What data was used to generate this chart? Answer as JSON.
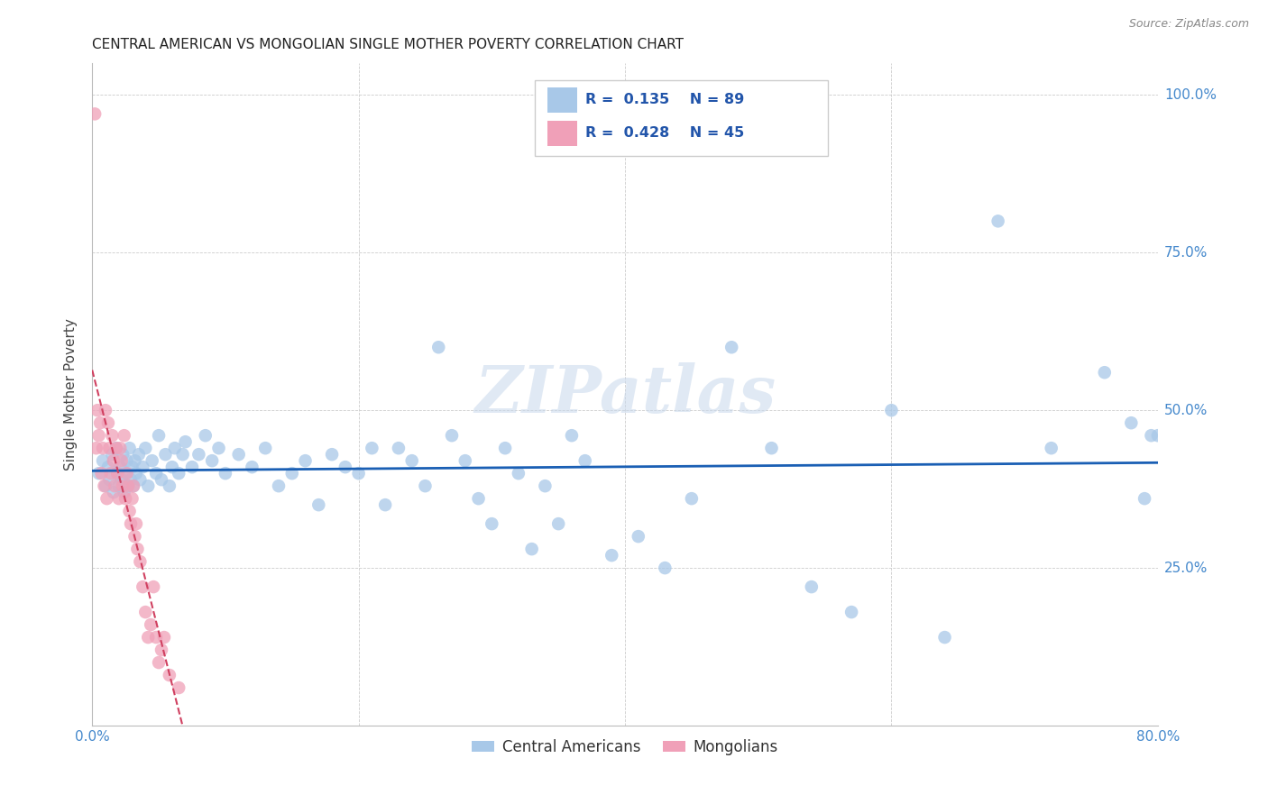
{
  "title": "CENTRAL AMERICAN VS MONGOLIAN SINGLE MOTHER POVERTY CORRELATION CHART",
  "source": "Source: ZipAtlas.com",
  "ylabel": "Single Mother Poverty",
  "xlim": [
    0.0,
    0.8
  ],
  "ylim": [
    0.0,
    1.05
  ],
  "xticks": [
    0.0,
    0.2,
    0.4,
    0.6,
    0.8
  ],
  "xticklabels": [
    "0.0%",
    "",
    "",
    "",
    "80.0%"
  ],
  "yticks": [
    0.25,
    0.5,
    0.75,
    1.0
  ],
  "yticklabels": [
    "25.0%",
    "50.0%",
    "75.0%",
    "100.0%"
  ],
  "blue_color": "#a8c8e8",
  "pink_color": "#f0a0b8",
  "trendline_blue": "#1a5fb4",
  "trendline_pink": "#d04060",
  "legend_label1": "Central Americans",
  "legend_label2": "Mongolians",
  "watermark": "ZIPatlas",
  "blue_x": [
    0.005,
    0.008,
    0.01,
    0.012,
    0.013,
    0.015,
    0.016,
    0.018,
    0.019,
    0.02,
    0.021,
    0.022,
    0.023,
    0.024,
    0.025,
    0.026,
    0.027,
    0.028,
    0.029,
    0.03,
    0.031,
    0.032,
    0.033,
    0.035,
    0.036,
    0.038,
    0.04,
    0.042,
    0.045,
    0.048,
    0.05,
    0.052,
    0.055,
    0.058,
    0.06,
    0.062,
    0.065,
    0.068,
    0.07,
    0.075,
    0.08,
    0.085,
    0.09,
    0.095,
    0.1,
    0.11,
    0.12,
    0.13,
    0.14,
    0.15,
    0.16,
    0.17,
    0.18,
    0.19,
    0.2,
    0.21,
    0.22,
    0.23,
    0.24,
    0.25,
    0.26,
    0.27,
    0.28,
    0.29,
    0.3,
    0.31,
    0.32,
    0.33,
    0.34,
    0.35,
    0.36,
    0.37,
    0.39,
    0.41,
    0.43,
    0.45,
    0.48,
    0.51,
    0.54,
    0.57,
    0.6,
    0.64,
    0.68,
    0.72,
    0.76,
    0.78,
    0.79,
    0.795,
    0.8
  ],
  "blue_y": [
    0.4,
    0.42,
    0.38,
    0.41,
    0.39,
    0.43,
    0.37,
    0.44,
    0.4,
    0.38,
    0.41,
    0.39,
    0.43,
    0.37,
    0.4,
    0.42,
    0.38,
    0.44,
    0.39,
    0.41,
    0.38,
    0.42,
    0.4,
    0.43,
    0.39,
    0.41,
    0.44,
    0.38,
    0.42,
    0.4,
    0.46,
    0.39,
    0.43,
    0.38,
    0.41,
    0.44,
    0.4,
    0.43,
    0.45,
    0.41,
    0.43,
    0.46,
    0.42,
    0.44,
    0.4,
    0.43,
    0.41,
    0.44,
    0.38,
    0.4,
    0.42,
    0.35,
    0.43,
    0.41,
    0.4,
    0.44,
    0.35,
    0.44,
    0.42,
    0.38,
    0.6,
    0.46,
    0.42,
    0.36,
    0.32,
    0.44,
    0.4,
    0.28,
    0.38,
    0.32,
    0.46,
    0.42,
    0.27,
    0.3,
    0.25,
    0.36,
    0.6,
    0.44,
    0.22,
    0.18,
    0.5,
    0.14,
    0.8,
    0.44,
    0.56,
    0.48,
    0.36,
    0.46,
    0.46
  ],
  "pink_x": [
    0.002,
    0.003,
    0.004,
    0.005,
    0.006,
    0.007,
    0.008,
    0.009,
    0.01,
    0.011,
    0.012,
    0.013,
    0.014,
    0.015,
    0.016,
    0.017,
    0.018,
    0.019,
    0.02,
    0.021,
    0.022,
    0.023,
    0.024,
    0.025,
    0.026,
    0.027,
    0.028,
    0.029,
    0.03,
    0.031,
    0.032,
    0.033,
    0.034,
    0.036,
    0.038,
    0.04,
    0.042,
    0.044,
    0.046,
    0.048,
    0.05,
    0.052,
    0.054,
    0.058,
    0.065
  ],
  "pink_y": [
    0.97,
    0.44,
    0.5,
    0.46,
    0.48,
    0.4,
    0.44,
    0.38,
    0.5,
    0.36,
    0.48,
    0.44,
    0.4,
    0.46,
    0.42,
    0.38,
    0.44,
    0.4,
    0.36,
    0.44,
    0.42,
    0.38,
    0.46,
    0.36,
    0.4,
    0.38,
    0.34,
    0.32,
    0.36,
    0.38,
    0.3,
    0.32,
    0.28,
    0.26,
    0.22,
    0.18,
    0.14,
    0.16,
    0.22,
    0.14,
    0.1,
    0.12,
    0.14,
    0.08,
    0.06
  ]
}
